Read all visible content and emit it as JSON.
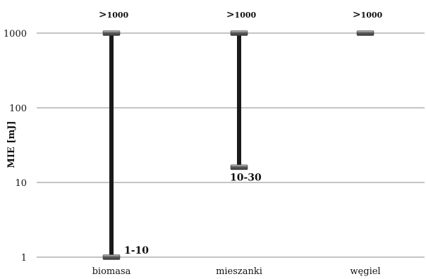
{
  "chart_data": {
    "type": "range",
    "title": "",
    "xlabel": "",
    "ylabel": "MIE [mJ]",
    "yscale": "log",
    "ylim": [
      1,
      1000
    ],
    "yticks": [
      "1",
      "10",
      "100",
      "1000"
    ],
    "grid": true,
    "categories": [
      "biomasa",
      "mieszanki",
      "węgiel"
    ],
    "series": [
      {
        "category": "biomasa",
        "low": 1,
        "high": 1000,
        "low_label": "1-10",
        "high_label_prefix": ">",
        "high_label_value": "1000"
      },
      {
        "category": "mieszanki",
        "low": 16,
        "high": 1000,
        "low_label": "10-30",
        "high_label_prefix": ">",
        "high_label_value": "1000"
      },
      {
        "category": "węgiel",
        "low": 1000,
        "high": 1000,
        "low_label": "",
        "high_label_prefix": ">",
        "high_label_value": "1000"
      }
    ],
    "colors": {
      "range_line": "#1a1a1a",
      "marker_dark": "#4a4a4a",
      "marker_light": "#b8b8b8",
      "grid": "#8a8a8a"
    }
  }
}
